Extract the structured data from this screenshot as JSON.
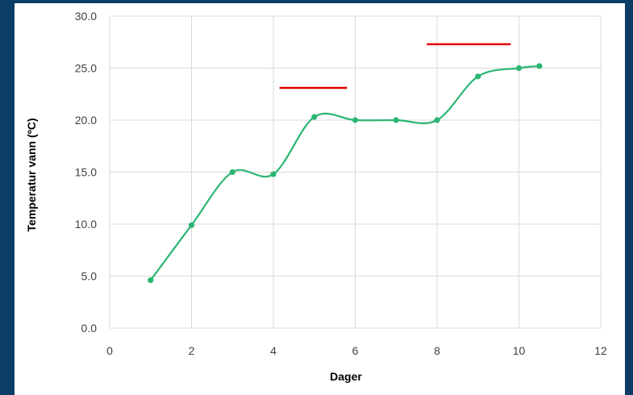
{
  "chart_data": {
    "type": "scatter",
    "title": "",
    "xlabel": "Dager",
    "ylabel": "Temperatur vann (ºC)",
    "xlim": [
      0,
      12
    ],
    "ylim": [
      0,
      30
    ],
    "xticks": [
      0,
      2,
      4,
      6,
      8,
      10,
      12
    ],
    "yticks": [
      0,
      5,
      10,
      15,
      20,
      25,
      30
    ],
    "xtick_labels": [
      "0",
      "2",
      "4",
      "6",
      "8",
      "10",
      "12"
    ],
    "ytick_labels": [
      "0.0",
      "5.0",
      "10.0",
      "15.0",
      "20.0",
      "25.0",
      "30.0"
    ],
    "grid": true,
    "legend": "none",
    "series": [
      {
        "color": "#2bb673",
        "style": "smoothed line with markers",
        "x": [
          1,
          2,
          3,
          4,
          5,
          6,
          7,
          8,
          9,
          10,
          10.5
        ],
        "y": [
          4.6,
          9.9,
          15.0,
          14.8,
          20.3,
          20.0,
          20.0,
          20.0,
          24.2,
          25.0,
          25.2
        ]
      }
    ],
    "reference_lines": [
      {
        "color": "#e00000",
        "x": [
          4.15,
          5.8
        ],
        "y": 23.1
      },
      {
        "color": "#e00000",
        "x": [
          7.75,
          9.8
        ],
        "y": 27.3
      }
    ]
  }
}
